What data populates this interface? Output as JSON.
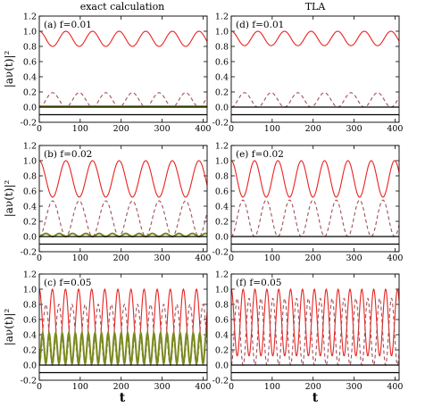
{
  "column_titles": [
    "exact calculation",
    "TLA"
  ],
  "row_ylabel": "|aν(t)|²",
  "xlabel": "t",
  "chart_data": [
    {
      "type": "line",
      "panel": "(a)",
      "f_label": "f=0.01",
      "column": "exact calculation",
      "xlim": [
        0,
        410
      ],
      "ylim": [
        -0.2,
        1.2
      ],
      "xticks": [
        0,
        100,
        200,
        300,
        400
      ],
      "yticks": [
        -0.2,
        0.0,
        0.2,
        0.4,
        0.6,
        0.8,
        1.0,
        1.2
      ],
      "series": [
        {
          "style": "solid",
          "color": "#e8231f",
          "curve": "cos_min",
          "min": 0.8,
          "max": 1.0,
          "period": 65
        },
        {
          "style": "dashed",
          "color": "#a0525a",
          "curve": "cos_max",
          "min": 0.0,
          "max": 0.19,
          "period": 65
        },
        {
          "style": "solid",
          "color": "#7a8a1e",
          "curve": "flat",
          "value": 0.01
        },
        {
          "style": "solid",
          "color": "#000000",
          "curve": "flat",
          "value": 0.0
        },
        {
          "style": "solid",
          "color": "#000000",
          "curve": "flat",
          "value": -0.1
        }
      ]
    },
    {
      "type": "line",
      "panel": "(b)",
      "f_label": "f=0.02",
      "column": "exact calculation",
      "xlim": [
        0,
        410
      ],
      "ylim": [
        -0.2,
        1.2
      ],
      "xticks": [
        0,
        100,
        200,
        300,
        400
      ],
      "yticks": [
        -0.2,
        0.0,
        0.2,
        0.4,
        0.6,
        0.8,
        1.0,
        1.2
      ],
      "series": [
        {
          "style": "solid",
          "color": "#e8231f",
          "curve": "cos_min",
          "min": 0.52,
          "max": 1.0,
          "period": 65
        },
        {
          "style": "dashed",
          "color": "#a0525a",
          "curve": "cos_max",
          "min": 0.0,
          "max": 0.47,
          "period": 65
        },
        {
          "style": "solid",
          "color": "#7a8a1e",
          "curve": "bumps",
          "min": 0.0,
          "max": 0.04,
          "period": 32.5
        },
        {
          "style": "solid",
          "color": "#000000",
          "curve": "flat",
          "value": 0.0
        },
        {
          "style": "solid",
          "color": "#000000",
          "curve": "flat",
          "value": -0.1
        }
      ]
    },
    {
      "type": "line",
      "panel": "(c)",
      "f_label": "f=0.05",
      "column": "exact calculation",
      "xlim": [
        0,
        410
      ],
      "ylim": [
        -0.2,
        1.2
      ],
      "xticks": [
        0,
        100,
        200,
        300,
        400
      ],
      "yticks": [
        -0.2,
        0.0,
        0.2,
        0.4,
        0.6,
        0.8,
        1.0,
        1.2
      ],
      "series": [
        {
          "style": "solid",
          "color": "#e8231f",
          "curve": "cos_min",
          "min": 0.05,
          "max": 1.0,
          "period": 32
        },
        {
          "style": "dashed",
          "color": "#a0525a",
          "curve": "cos_max",
          "min": 0.0,
          "max": 0.8,
          "period": 32
        },
        {
          "style": "solid",
          "color": "#7a8a1e",
          "curve": "bumps",
          "min": 0.02,
          "max": 0.42,
          "period": 16
        },
        {
          "style": "solid",
          "color": "#000000",
          "curve": "flat",
          "value": 0.0
        },
        {
          "style": "solid",
          "color": "#000000",
          "curve": "flat",
          "value": -0.1
        }
      ]
    },
    {
      "type": "line",
      "panel": "(d)",
      "f_label": "f=0.01",
      "column": "TLA",
      "xlim": [
        0,
        410
      ],
      "ylim": [
        -0.2,
        1.2
      ],
      "xticks": [
        0,
        100,
        200,
        300,
        400
      ],
      "yticks": [
        -0.2,
        0.0,
        0.2,
        0.4,
        0.6,
        0.8,
        1.0,
        1.2
      ],
      "series": [
        {
          "style": "solid",
          "color": "#e8231f",
          "curve": "cos_min",
          "min": 0.81,
          "max": 1.0,
          "period": 65
        },
        {
          "style": "dashed",
          "color": "#a0525a",
          "curve": "cos_max",
          "min": 0.0,
          "max": 0.19,
          "period": 65
        },
        {
          "style": "solid",
          "color": "#000000",
          "curve": "flat",
          "value": 0.0
        },
        {
          "style": "solid",
          "color": "#000000",
          "curve": "flat",
          "value": -0.1
        }
      ]
    },
    {
      "type": "line",
      "panel": "(e)",
      "f_label": "f=0.02",
      "column": "TLA",
      "xlim": [
        0,
        410
      ],
      "ylim": [
        -0.2,
        1.2
      ],
      "xticks": [
        0,
        100,
        200,
        300,
        400
      ],
      "yticks": [
        -0.2,
        0.0,
        0.2,
        0.4,
        0.6,
        0.8,
        1.0,
        1.2
      ],
      "series": [
        {
          "style": "solid",
          "color": "#e8231f",
          "curve": "cos_min",
          "min": 0.52,
          "max": 1.0,
          "period": 57
        },
        {
          "style": "dashed",
          "color": "#a0525a",
          "curve": "cos_max",
          "min": 0.0,
          "max": 0.48,
          "period": 57
        },
        {
          "style": "solid",
          "color": "#000000",
          "curve": "flat",
          "value": 0.0
        },
        {
          "style": "solid",
          "color": "#000000",
          "curve": "flat",
          "value": -0.1
        }
      ]
    },
    {
      "type": "line",
      "panel": "(f)",
      "f_label": "f=0.05",
      "column": "TLA",
      "xlim": [
        0,
        410
      ],
      "ylim": [
        -0.2,
        1.2
      ],
      "xticks": [
        0,
        100,
        200,
        300,
        400
      ],
      "yticks": [
        -0.2,
        0.0,
        0.2,
        0.4,
        0.6,
        0.8,
        1.0,
        1.2
      ],
      "series": [
        {
          "style": "solid",
          "color": "#e8231f",
          "curve": "cos_min",
          "min": 0.12,
          "max": 1.0,
          "period": 29
        },
        {
          "style": "dashed",
          "color": "#a0525a",
          "curve": "cos_max",
          "min": 0.0,
          "max": 0.88,
          "period": 29
        },
        {
          "style": "solid",
          "color": "#000000",
          "curve": "flat",
          "value": 0.0
        },
        {
          "style": "solid",
          "color": "#000000",
          "curve": "flat",
          "value": -0.1
        }
      ]
    }
  ]
}
